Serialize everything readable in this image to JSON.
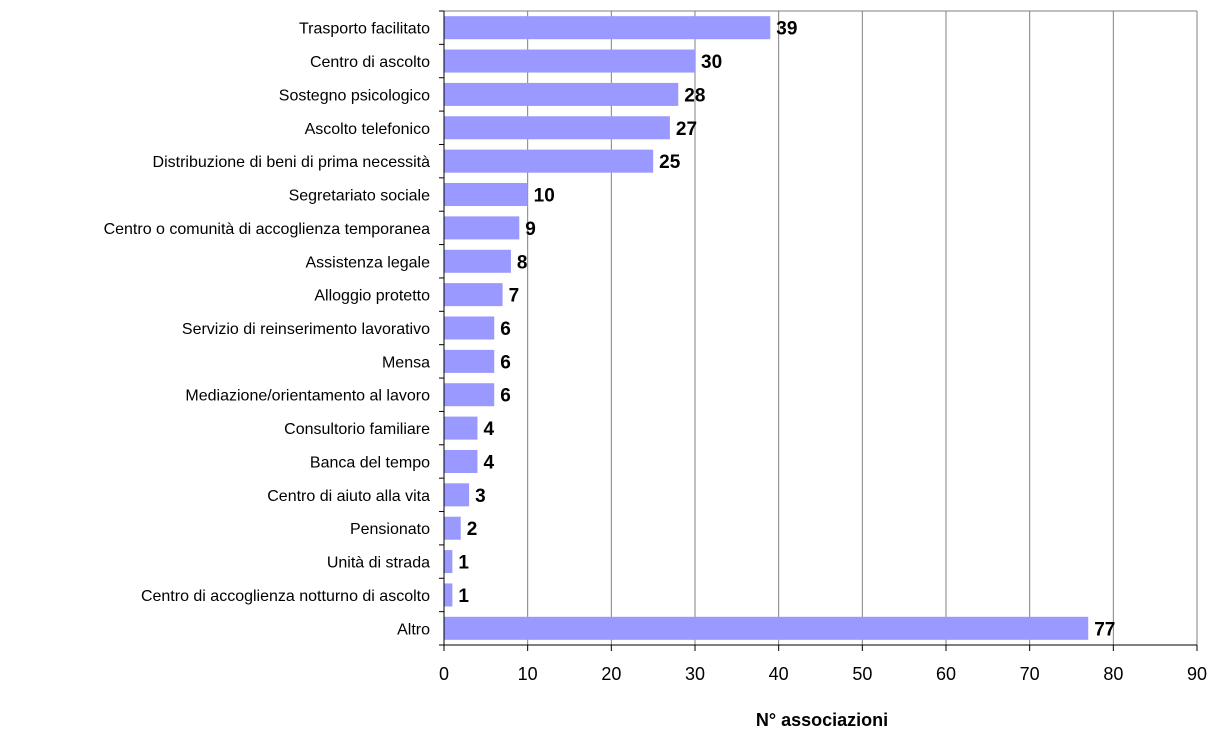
{
  "chart_data": {
    "type": "bar",
    "orientation": "horizontal",
    "categories": [
      "Trasporto facilitato",
      "Centro di ascolto",
      "Sostegno psicologico",
      "Ascolto telefonico",
      "Distribuzione di beni di prima necessità",
      "Segretariato sociale",
      "Centro o comunità di accoglienza temporanea",
      "Assistenza legale",
      "Alloggio protetto",
      "Servizio di reinserimento lavorativo",
      "Mensa",
      "Mediazione/orientamento al lavoro",
      "Consultorio familiare",
      "Banca del tempo",
      "Centro di aiuto alla vita",
      "Pensionato",
      "Unità di strada",
      "Centro di accoglienza notturno di ascolto",
      "Altro"
    ],
    "values": [
      39,
      30,
      28,
      27,
      25,
      10,
      9,
      8,
      7,
      6,
      6,
      6,
      4,
      4,
      3,
      2,
      1,
      1,
      77
    ],
    "data_labels": [
      "39",
      "30",
      "28",
      "27",
      "25",
      "10",
      "9",
      "8",
      "7",
      "6",
      "6",
      "6",
      "4",
      "4",
      "3",
      "2",
      "1",
      "1",
      "77"
    ],
    "title": "",
    "xlabel": "N° associazioni",
    "ylabel": "",
    "xlim": [
      0,
      90
    ],
    "x_ticks": [
      "0",
      "10",
      "20",
      "30",
      "40",
      "50",
      "60",
      "70",
      "80",
      "90"
    ],
    "grid": "vertical",
    "legend": "none",
    "bar_color": "#9999FF",
    "grid_color": "#808080"
  }
}
